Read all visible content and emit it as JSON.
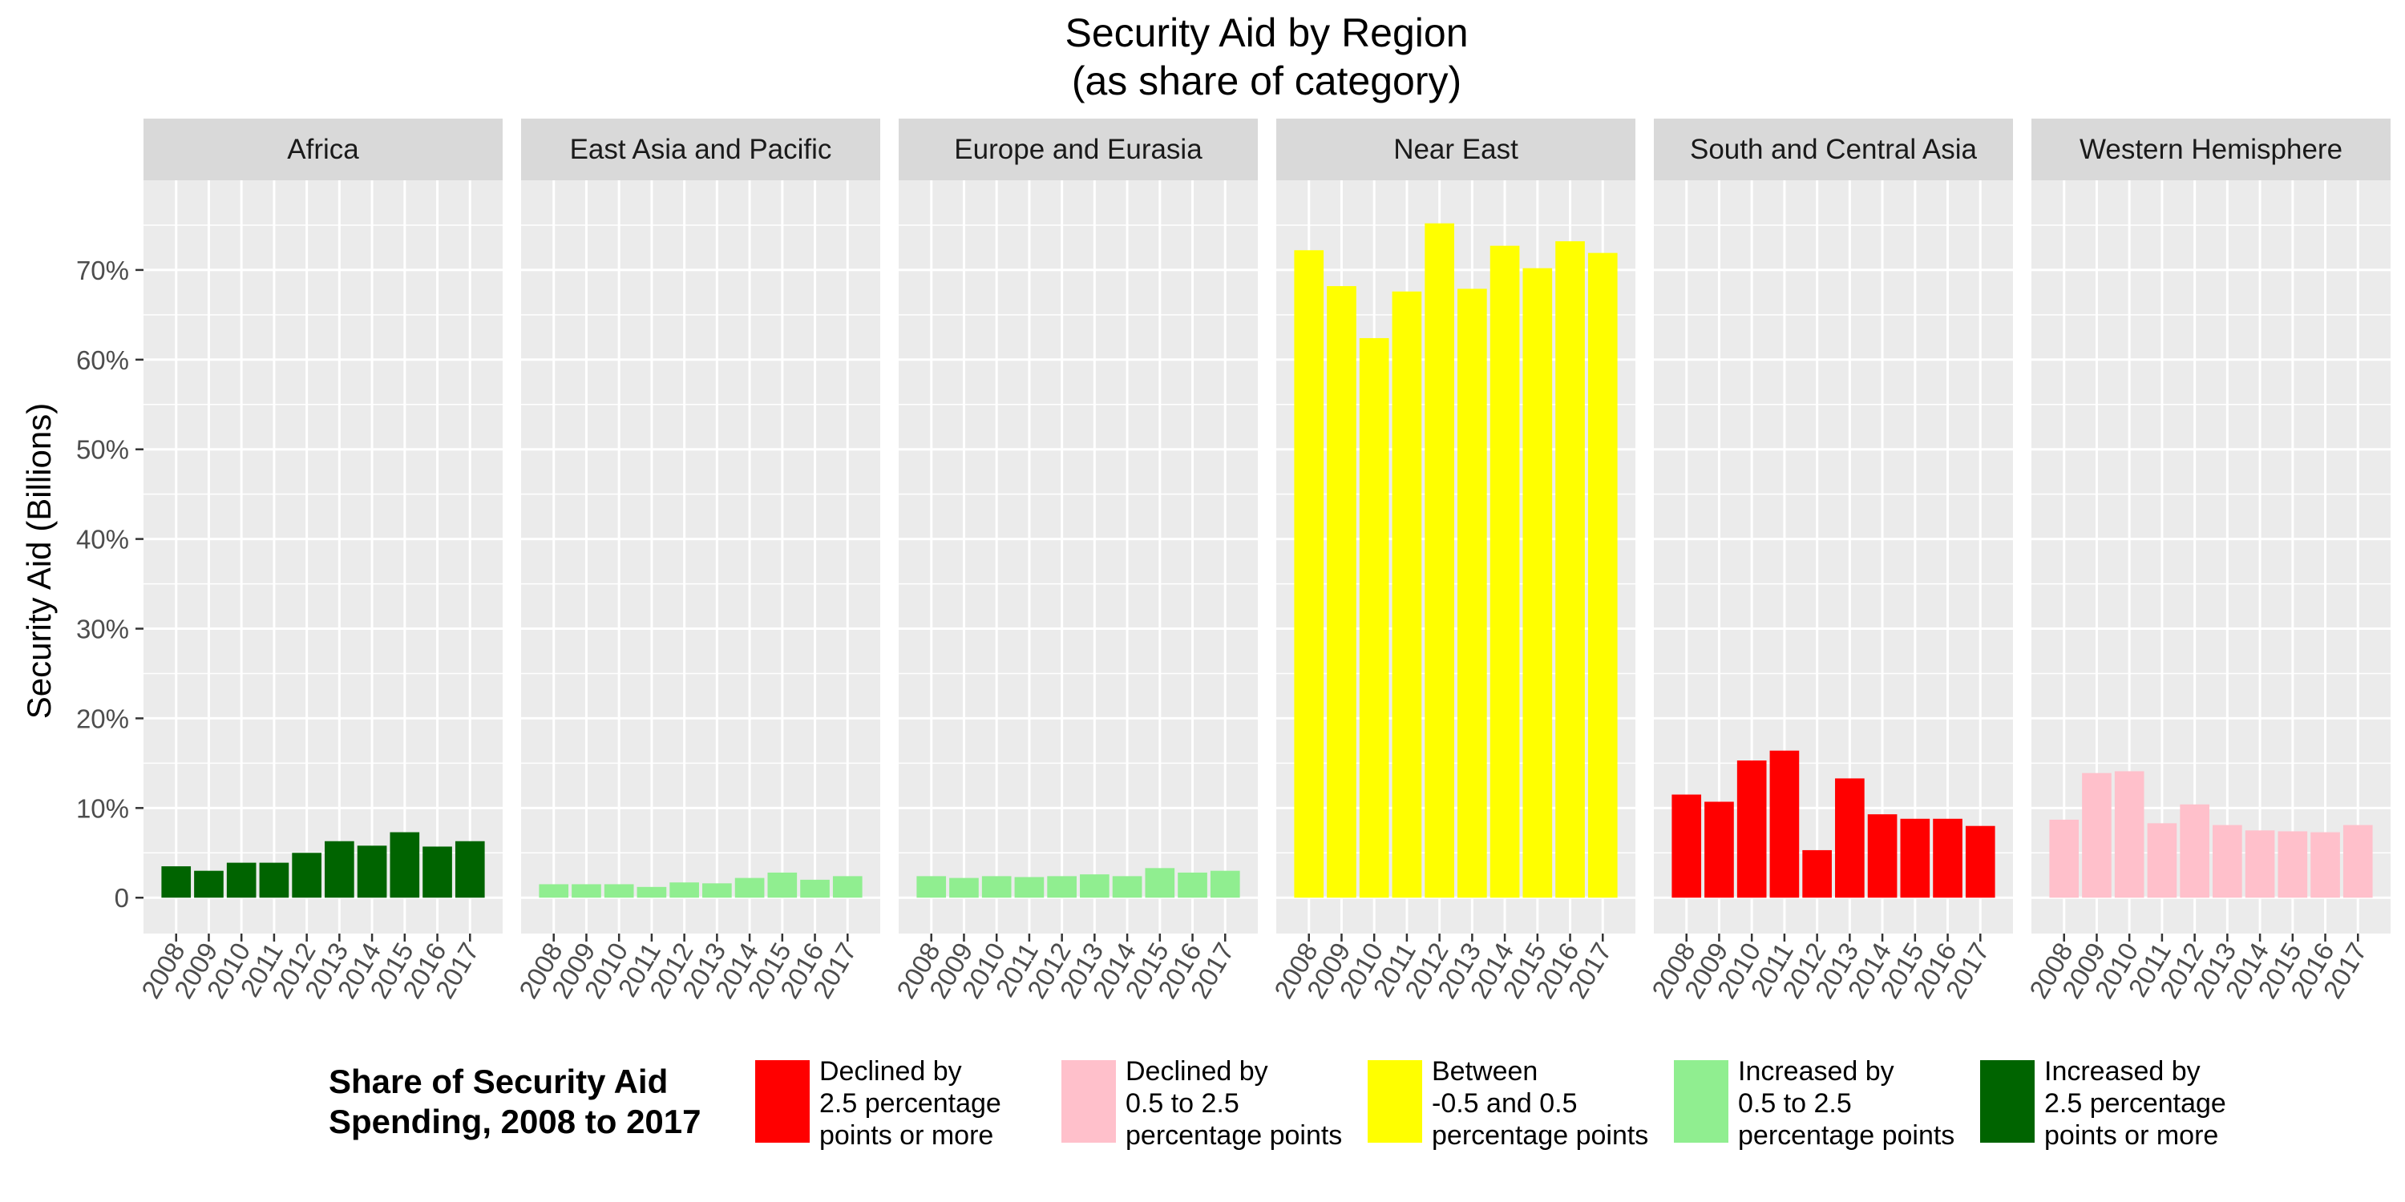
{
  "chart_data": {
    "type": "bar",
    "title_lines": [
      "Security Aid by Region",
      "(as share of category)"
    ],
    "ylabel": "Security Aid (Billions)",
    "ylim": [
      -0.04,
      0.8
    ],
    "yticks": [
      0,
      0.1,
      0.2,
      0.3,
      0.4,
      0.5,
      0.6,
      0.7
    ],
    "ytick_labels": [
      "0",
      "10%",
      "20%",
      "30%",
      "40%",
      "50%",
      "60%",
      "70%"
    ],
    "categories": [
      "2008",
      "2009",
      "2010",
      "2011",
      "2012",
      "2013",
      "2014",
      "2015",
      "2016",
      "2017"
    ],
    "grid": true,
    "legend_position": "bottom",
    "legend": {
      "title_lines": [
        "Share of Security Aid",
        "Spending, 2008 to 2017"
      ],
      "entries": [
        {
          "key": "declined_large",
          "color": "#FF0000",
          "lines": [
            "Declined by",
            "2.5 percentage",
            "points or more"
          ]
        },
        {
          "key": "declined_small",
          "color": "#FFC0CB",
          "lines": [
            "Declined by",
            "0.5 to 2.5",
            "percentage points"
          ]
        },
        {
          "key": "stable",
          "color": "#FFFF00",
          "lines": [
            "Between",
            "-0.5 and 0.5",
            "percentage points"
          ]
        },
        {
          "key": "increased_small",
          "color": "#90EE90",
          "lines": [
            "Increased by",
            "0.5 to 2.5",
            "percentage points"
          ]
        },
        {
          "key": "increased_large",
          "color": "#006400",
          "lines": [
            "Increased by",
            "2.5 percentage",
            "points or more"
          ]
        }
      ]
    },
    "panels": [
      {
        "name": "Africa",
        "fill": "increased_large",
        "values": [
          0.035,
          0.03,
          0.039,
          0.039,
          0.05,
          0.063,
          0.058,
          0.073,
          0.057,
          0.063
        ]
      },
      {
        "name": "East Asia and Pacific",
        "fill": "increased_small",
        "values": [
          0.015,
          0.015,
          0.015,
          0.012,
          0.017,
          0.016,
          0.022,
          0.028,
          0.02,
          0.024
        ]
      },
      {
        "name": "Europe and Eurasia",
        "fill": "increased_small",
        "values": [
          0.024,
          0.022,
          0.024,
          0.023,
          0.024,
          0.026,
          0.024,
          0.033,
          0.028,
          0.03
        ]
      },
      {
        "name": "Near East",
        "fill": "stable",
        "values": [
          0.722,
          0.682,
          0.624,
          0.676,
          0.752,
          0.679,
          0.727,
          0.702,
          0.732,
          0.719
        ]
      },
      {
        "name": "South and Central Asia",
        "fill": "declined_large",
        "values": [
          0.115,
          0.107,
          0.153,
          0.164,
          0.053,
          0.133,
          0.093,
          0.088,
          0.088,
          0.08
        ]
      },
      {
        "name": "Western Hemisphere",
        "fill": "declined_small",
        "values": [
          0.087,
          0.139,
          0.141,
          0.083,
          0.104,
          0.081,
          0.075,
          0.074,
          0.073,
          0.081
        ]
      }
    ]
  }
}
